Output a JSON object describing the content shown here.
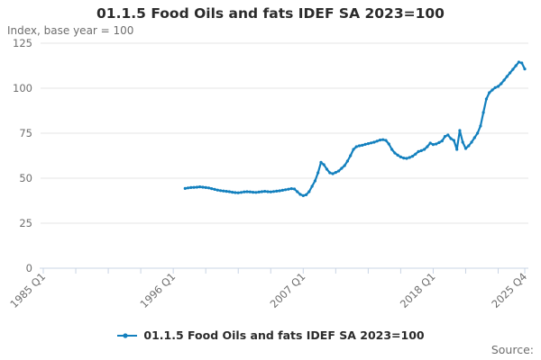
{
  "title": "01.1.5 Food Oils and fats IDEF SA 2023=100",
  "subtitle": "Index, base year = 100",
  "legend": {
    "label": "01.1.5 Food Oils and fats IDEF SA 2023=100"
  },
  "source_label": "Source:",
  "colors": {
    "line": "#1380BE",
    "grid": "#E6E6E6",
    "axis": "#C9D4E4",
    "text_muted": "#6E6E6E",
    "text_dark": "#2B2B2B"
  },
  "chart_data": {
    "type": "line",
    "title": "01.1.5 Food Oils and fats IDEF SA 2023=100",
    "xlabel": "",
    "ylabel": "Index, base year = 100",
    "ylim": [
      0,
      125
    ],
    "y_ticks": [
      0,
      25,
      50,
      75,
      100,
      125
    ],
    "grid": "horizontal",
    "legend_position": "bottom",
    "x_axis_start": "1985 Q1",
    "x_axis_end": "2025 Q4",
    "x_ticks": [
      {
        "q": 0,
        "label": "1985 Q1"
      },
      {
        "q": 11,
        "label": ""
      },
      {
        "q": 22,
        "label": ""
      },
      {
        "q": 33,
        "label": ""
      },
      {
        "q": 44,
        "label": "1996 Q1"
      },
      {
        "q": 55,
        "label": ""
      },
      {
        "q": 66,
        "label": ""
      },
      {
        "q": 77,
        "label": ""
      },
      {
        "q": 88,
        "label": "2007 Q1"
      },
      {
        "q": 99,
        "label": ""
      },
      {
        "q": 110,
        "label": ""
      },
      {
        "q": 121,
        "label": ""
      },
      {
        "q": 132,
        "label": "2018 Q1"
      },
      {
        "q": 143,
        "label": ""
      },
      {
        "q": 154,
        "label": ""
      },
      {
        "q": 163,
        "label": "2025 Q4"
      }
    ],
    "series": [
      {
        "name": "01.1.5 Food Oils and fats IDEF SA 2023=100",
        "start": "1997 Q1",
        "frequency": "quarterly",
        "values": [
          44.3,
          44.6,
          44.8,
          44.9,
          45.0,
          45.2,
          45.0,
          44.8,
          44.6,
          44.2,
          43.8,
          43.4,
          43.1,
          42.9,
          42.7,
          42.5,
          42.2,
          42.0,
          41.9,
          42.1,
          42.4,
          42.5,
          42.4,
          42.2,
          42.1,
          42.3,
          42.5,
          42.7,
          42.5,
          42.4,
          42.6,
          42.8,
          43.0,
          43.3,
          43.6,
          43.9,
          44.2,
          44.0,
          42.5,
          41.0,
          40.3,
          40.8,
          42.5,
          45.5,
          48.5,
          53.0,
          58.8,
          57.5,
          55.0,
          53.0,
          52.5,
          53.2,
          54.0,
          55.5,
          57.0,
          59.5,
          62.5,
          66.0,
          67.5,
          68.0,
          68.3,
          68.8,
          69.2,
          69.6,
          70.0,
          70.6,
          71.2,
          71.4,
          71.0,
          69.0,
          66.0,
          64.0,
          62.8,
          61.8,
          61.2,
          61.0,
          61.5,
          62.2,
          63.4,
          64.8,
          65.3,
          66.0,
          67.5,
          69.5,
          68.7,
          69.0,
          69.8,
          70.7,
          73.2,
          74.0,
          72.0,
          71.0,
          66.0,
          76.5,
          70.0,
          66.5,
          68.0,
          70.0,
          72.5,
          75.0,
          79.0,
          86.5,
          94.0,
          97.5,
          99.0,
          100.3,
          101.0,
          102.5,
          104.5,
          106.5,
          108.5,
          110.5,
          112.5,
          114.5,
          114.0,
          110.7
        ]
      }
    ]
  }
}
